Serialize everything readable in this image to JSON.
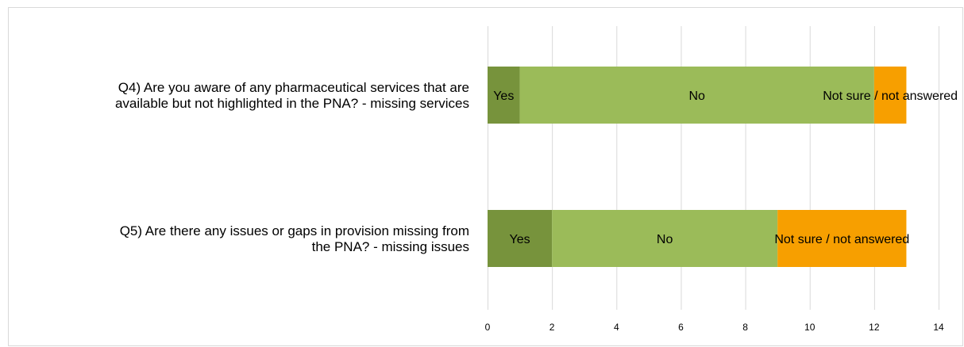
{
  "caption": "",
  "chart_data": {
    "type": "bar",
    "orientation": "horizontal",
    "stacked": true,
    "categories": [
      [
        "Q4) Are you aware of any pharmaceutical services that are",
        "available but not highlighted in the PNA? - missing services"
      ],
      [
        "Q5) Are there any issues or gaps in provision missing from",
        "the PNA? - missing issues"
      ]
    ],
    "series": [
      {
        "name": "Yes",
        "values": [
          1,
          2
        ],
        "color": "#77933c"
      },
      {
        "name": "No",
        "values": [
          11,
          7
        ],
        "color": "#9bbb59"
      },
      {
        "name": "Not sure / not answered",
        "values": [
          1,
          4
        ],
        "color": "#f79f00"
      }
    ],
    "xlim": [
      0,
      14
    ],
    "xticks": [
      "0",
      "2",
      "4",
      "6",
      "8",
      "10",
      "12",
      "14"
    ],
    "grid": true,
    "title": "",
    "xlabel": "",
    "ylabel": ""
  }
}
